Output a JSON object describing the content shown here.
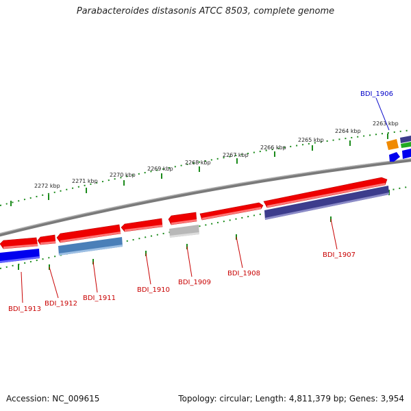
{
  "title": "Parabacteroides distasonis ATCC 8503, complete genome",
  "footer": {
    "accession": "Accession: NC_009615",
    "summary": "Topology: circular; Length: 4,811,379 bp; Genes: 3,954"
  },
  "ticks": [
    "2263 kbp",
    "2264 kbp",
    "2265 kbp",
    "2266 kbp",
    "2267 kbp",
    "2268 kbp",
    "2269 kbp",
    "2270 kbp",
    "2271 kbp",
    "2272 kbp"
  ],
  "genes": [
    {
      "name": "BDI_1906",
      "color": "#0000c8"
    },
    {
      "name": "BDI_1907",
      "color": "#c80000"
    },
    {
      "name": "BDI_1908",
      "color": "#c80000"
    },
    {
      "name": "BDI_1909",
      "color": "#c80000"
    },
    {
      "name": "BDI_1910",
      "color": "#c80000"
    },
    {
      "name": "BDI_1911",
      "color": "#c80000"
    },
    {
      "name": "BDI_1912",
      "color": "#c80000"
    },
    {
      "name": "BDI_1913",
      "color": "#c80000"
    }
  ],
  "colors": {
    "cds": "#ee0000",
    "cds_light": "#ff7777",
    "axis": "#7a7a7a",
    "tick": "#1a8a1a",
    "protein_navy": "#3c3c8c",
    "protein_steel": "#4a7fb8",
    "protein_blue": "#0000ee",
    "protein_grey": "#b8b8b8",
    "rna_orange": "#f08a00",
    "rna_green": "#22aa22"
  }
}
